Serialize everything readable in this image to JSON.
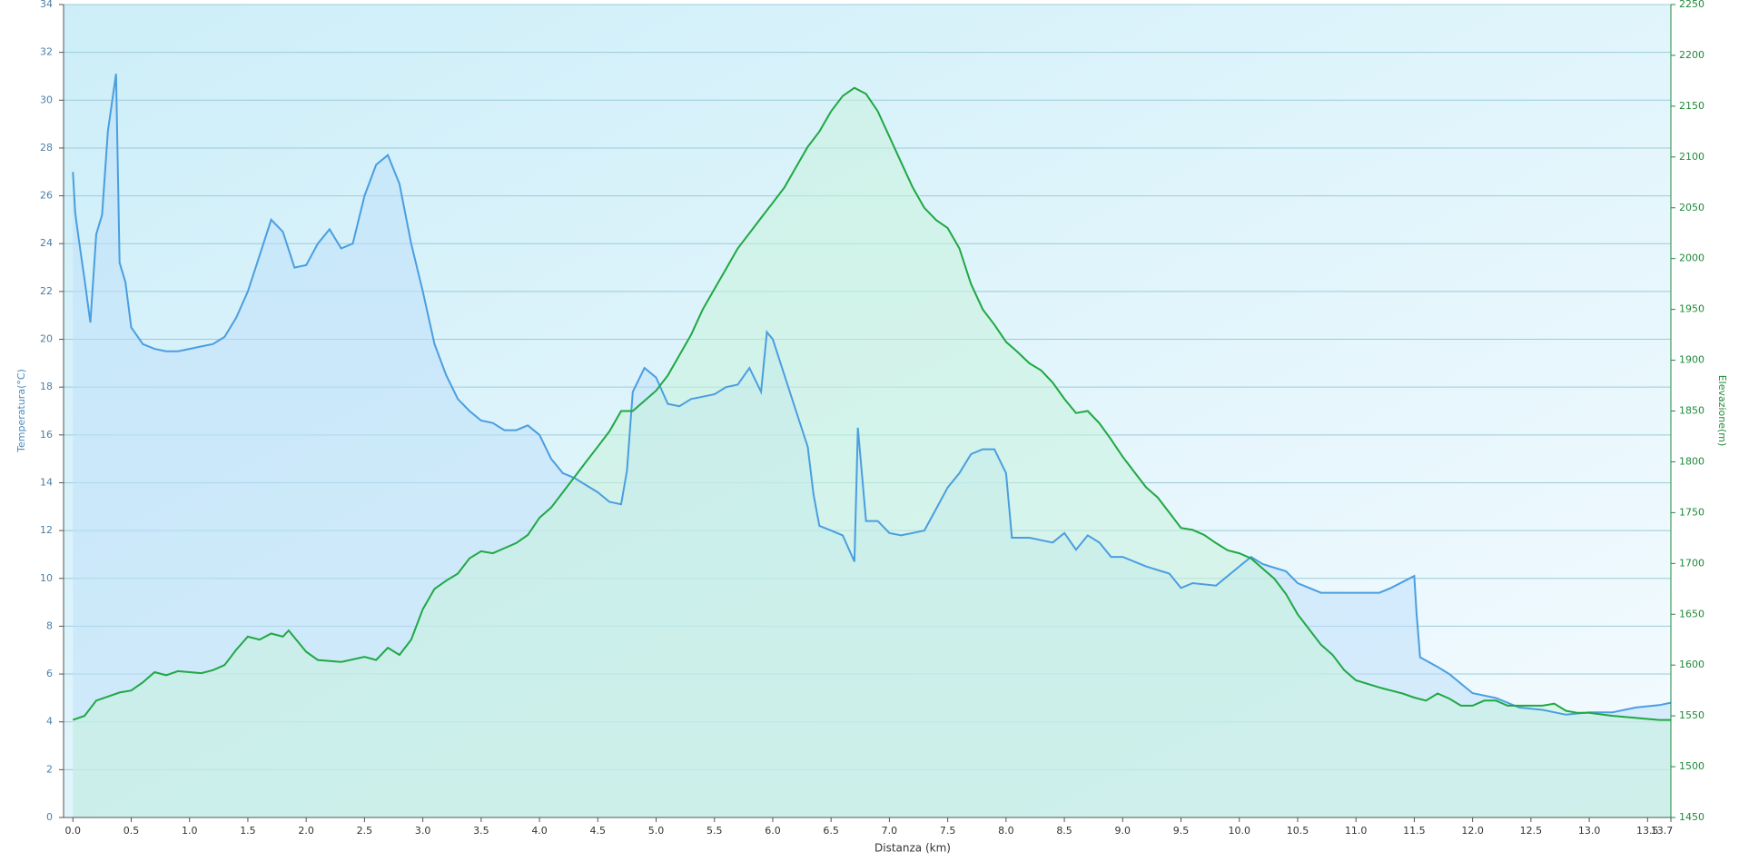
{
  "chart_data": {
    "type": "line",
    "xlabel": "Distanza  (km)",
    "ylabel": "Temperatura(°C)",
    "y2label": "Elevazione(m)",
    "xlim": [
      -0.08,
      13.7
    ],
    "ylim": [
      0,
      34
    ],
    "y2lim": [
      1450,
      2250
    ],
    "grid": true,
    "xticks": [
      {
        "value": 0,
        "label": "0.0"
      },
      0.5,
      {
        "value": 1,
        "label": "1.0"
      },
      1.5,
      {
        "value": 2,
        "label": "2.0"
      },
      2.5,
      {
        "value": 3,
        "label": "3.0"
      },
      3.5,
      {
        "value": 4,
        "label": "4.0"
      },
      4.5,
      {
        "value": 5,
        "label": "5.0"
      },
      5.5,
      {
        "value": 6,
        "label": "6.0"
      },
      6.5,
      {
        "value": 7,
        "label": "7.0"
      },
      7.5,
      {
        "value": 8,
        "label": "8.0"
      },
      8.5,
      {
        "value": 9,
        "label": "9.0"
      },
      9.5,
      {
        "value": 10,
        "label": "10.0"
      },
      10.5,
      {
        "value": 11,
        "label": "11.0"
      },
      11.5,
      {
        "value": 12,
        "label": "12.0"
      },
      12.5,
      {
        "value": 13,
        "label": "13.0"
      },
      13.5,
      13.7
    ],
    "yticks": [
      0,
      2,
      4,
      6,
      8,
      10,
      12,
      14,
      16,
      18,
      20,
      22,
      24,
      26,
      28,
      30,
      32,
      34
    ],
    "y2ticks": [
      1450,
      1500,
      1550,
      1600,
      1650,
      1700,
      1750,
      1800,
      1850,
      1900,
      1950,
      2000,
      2050,
      2100,
      2150,
      2200,
      2250
    ],
    "series": [
      {
        "color": "#4a9ee0",
        "fill": "#bfe0fa",
        "axis": "y",
        "x": [
          0,
          0.02,
          0.05,
          0.1,
          0.15,
          0.2,
          0.25,
          0.3,
          0.37,
          0.4,
          0.45,
          0.5,
          0.6,
          0.7,
          0.8,
          0.9,
          1.0,
          1.1,
          1.2,
          1.3,
          1.4,
          1.5,
          1.6,
          1.7,
          1.8,
          1.9,
          2.0,
          2.1,
          2.2,
          2.3,
          2.4,
          2.5,
          2.6,
          2.7,
          2.8,
          2.9,
          3.0,
          3.1,
          3.2,
          3.3,
          3.4,
          3.5,
          3.6,
          3.7,
          3.8,
          3.9,
          4.0,
          4.1,
          4.2,
          4.3,
          4.4,
          4.5,
          4.6,
          4.7,
          4.75,
          4.8,
          4.9,
          5.0,
          5.1,
          5.2,
          5.3,
          5.4,
          5.5,
          5.6,
          5.7,
          5.8,
          5.9,
          5.95,
          6.0,
          6.1,
          6.2,
          6.3,
          6.35,
          6.4,
          6.5,
          6.6,
          6.7,
          6.73,
          6.8,
          6.9,
          7.0,
          7.1,
          7.2,
          7.3,
          7.4,
          7.5,
          7.6,
          7.7,
          7.8,
          7.9,
          8.0,
          8.05,
          8.2,
          8.4,
          8.5,
          8.6,
          8.7,
          8.8,
          8.9,
          9.0,
          9.2,
          9.4,
          9.5,
          9.6,
          9.8,
          10.0,
          10.1,
          10.2,
          10.4,
          10.5,
          10.7,
          10.8,
          11.0,
          11.2,
          11.3,
          11.5,
          11.52,
          11.55,
          11.7,
          11.8,
          11.9,
          12.0,
          12.2,
          12.4,
          12.6,
          12.8,
          13.0,
          13.2,
          13.4,
          13.6,
          13.7
        ],
        "values": [
          27,
          25.3,
          24.2,
          22.5,
          20.7,
          24.4,
          25.2,
          28.7,
          31.1,
          23.2,
          22.4,
          20.5,
          19.8,
          19.6,
          19.5,
          19.5,
          19.6,
          19.7,
          19.8,
          20.1,
          20.9,
          22,
          23.5,
          25,
          24.5,
          23,
          23.1,
          24,
          24.6,
          23.8,
          24,
          26,
          27.3,
          27.7,
          26.5,
          24,
          22,
          19.8,
          18.5,
          17.5,
          17,
          16.6,
          16.5,
          16.2,
          16.2,
          16.4,
          16,
          15,
          14.4,
          14.2,
          13.9,
          13.6,
          13.2,
          13.1,
          14.5,
          17.8,
          18.8,
          18.4,
          17.3,
          17.2,
          17.5,
          17.6,
          17.7,
          18,
          18.1,
          18.8,
          17.8,
          20.3,
          20,
          18.5,
          17,
          15.5,
          13.5,
          12.2,
          12,
          11.8,
          10.7,
          16.3,
          12.4,
          12.4,
          11.9,
          11.8,
          11.9,
          12,
          12.9,
          13.8,
          14.4,
          15.2,
          15.4,
          15.4,
          14.4,
          11.7,
          11.7,
          11.5,
          11.9,
          11.2,
          11.8,
          11.5,
          10.9,
          10.9,
          10.5,
          10.2,
          9.6,
          9.8,
          9.7,
          10.5,
          10.9,
          10.6,
          10.3,
          9.8,
          9.4,
          9.4,
          9.4,
          9.4,
          9.6,
          10.1,
          8.5,
          6.7,
          6.3,
          6,
          5.6,
          5.2,
          5,
          4.6,
          4.5,
          4.3,
          4.4,
          4.4,
          4.6,
          4.7,
          4.8
        ]
      },
      {
        "color": "#1fa843",
        "fill": "#c8f2dc",
        "axis": "y2",
        "x": [
          0,
          0.1,
          0.2,
          0.4,
          0.5,
          0.6,
          0.7,
          0.8,
          0.9,
          1.0,
          1.1,
          1.2,
          1.3,
          1.4,
          1.5,
          1.6,
          1.7,
          1.8,
          1.85,
          2.0,
          2.1,
          2.3,
          2.5,
          2.6,
          2.7,
          2.8,
          2.9,
          3.0,
          3.1,
          3.2,
          3.3,
          3.4,
          3.5,
          3.6,
          3.7,
          3.8,
          3.9,
          4.0,
          4.1,
          4.2,
          4.3,
          4.4,
          4.5,
          4.6,
          4.7,
          4.8,
          4.9,
          5.0,
          5.1,
          5.2,
          5.3,
          5.4,
          5.5,
          5.6,
          5.7,
          5.8,
          5.9,
          6.0,
          6.1,
          6.2,
          6.3,
          6.4,
          6.5,
          6.6,
          6.7,
          6.8,
          6.9,
          7.0,
          7.1,
          7.2,
          7.3,
          7.4,
          7.5,
          7.6,
          7.7,
          7.8,
          7.9,
          8.0,
          8.1,
          8.2,
          8.3,
          8.4,
          8.5,
          8.6,
          8.7,
          8.8,
          8.9,
          9.0,
          9.1,
          9.2,
          9.3,
          9.4,
          9.5,
          9.6,
          9.7,
          9.8,
          9.9,
          10.0,
          10.1,
          10.2,
          10.3,
          10.4,
          10.5,
          10.6,
          10.7,
          10.8,
          10.9,
          11.0,
          11.2,
          11.3,
          11.4,
          11.5,
          11.6,
          11.7,
          11.8,
          11.9,
          12.0,
          12.1,
          12.2,
          12.3,
          12.4,
          12.6,
          12.7,
          12.8,
          12.9,
          13.0,
          13.2,
          13.4,
          13.6,
          13.7
        ],
        "values": [
          1546,
          1550,
          1565,
          1573,
          1575,
          1583,
          1593,
          1590,
          1594,
          1593,
          1592,
          1595,
          1600,
          1615,
          1628,
          1625,
          1631,
          1628,
          1634,
          1613,
          1605,
          1603,
          1608,
          1605,
          1617,
          1610,
          1625,
          1655,
          1675,
          1683,
          1690,
          1705,
          1712,
          1710,
          1715,
          1720,
          1728,
          1745,
          1755,
          1770,
          1785,
          1800,
          1815,
          1830,
          1850,
          1850,
          1860,
          1870,
          1885,
          1905,
          1925,
          1950,
          1970,
          1990,
          2010,
          2025,
          2040,
          2055,
          2070,
          2090,
          2110,
          2125,
          2145,
          2160,
          2168,
          2162,
          2145,
          2120,
          2095,
          2070,
          2050,
          2038,
          2030,
          2010,
          1975,
          1950,
          1935,
          1918,
          1908,
          1897,
          1890,
          1878,
          1862,
          1848,
          1850,
          1838,
          1822,
          1805,
          1790,
          1775,
          1765,
          1750,
          1735,
          1733,
          1728,
          1720,
          1713,
          1710,
          1705,
          1695,
          1685,
          1670,
          1650,
          1635,
          1620,
          1610,
          1595,
          1585,
          1578,
          1575,
          1572,
          1568,
          1565,
          1572,
          1567,
          1560,
          1560,
          1565,
          1565,
          1560,
          1560,
          1560,
          1562,
          1555,
          1553,
          1553,
          1550,
          1548,
          1546,
          1546
        ]
      }
    ]
  }
}
